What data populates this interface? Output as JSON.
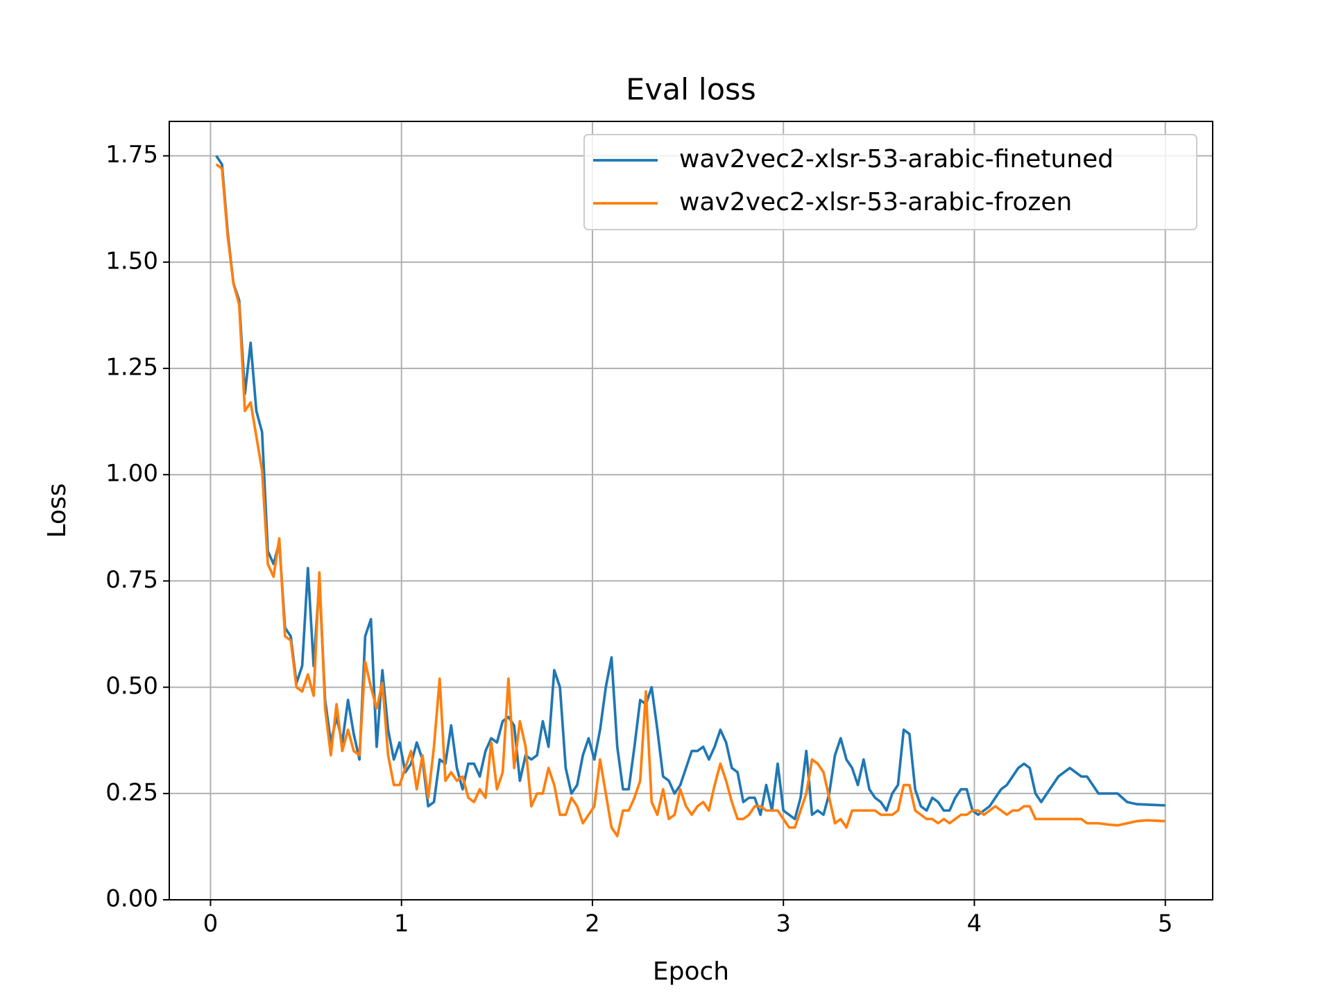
{
  "chart_data": {
    "type": "line",
    "title": "Eval loss",
    "xlabel": "Epoch",
    "ylabel": "Loss",
    "x": [
      0.03,
      0.06,
      0.09,
      0.12,
      0.15,
      0.18,
      0.21,
      0.24,
      0.27,
      0.3,
      0.33,
      0.36,
      0.39,
      0.42,
      0.45,
      0.48,
      0.51,
      0.54,
      0.57,
      0.6,
      0.63,
      0.66,
      0.69,
      0.72,
      0.75,
      0.78,
      0.81,
      0.84,
      0.87,
      0.9,
      0.93,
      0.96,
      0.99,
      1.02,
      1.05,
      1.08,
      1.11,
      1.14,
      1.17,
      1.2,
      1.23,
      1.26,
      1.29,
      1.32,
      1.35,
      1.38,
      1.41,
      1.44,
      1.47,
      1.5,
      1.53,
      1.56,
      1.59,
      1.62,
      1.65,
      1.68,
      1.71,
      1.74,
      1.77,
      1.8,
      1.83,
      1.86,
      1.89,
      1.92,
      1.95,
      1.98,
      2.01,
      2.04,
      2.07,
      2.1,
      2.13,
      2.16,
      2.19,
      2.22,
      2.25,
      2.28,
      2.31,
      2.34,
      2.37,
      2.4,
      2.43,
      2.46,
      2.49,
      2.52,
      2.55,
      2.58,
      2.61,
      2.64,
      2.67,
      2.7,
      2.73,
      2.76,
      2.79,
      2.82,
      2.85,
      2.88,
      2.91,
      2.94,
      2.97,
      3.0,
      3.03,
      3.06,
      3.09,
      3.12,
      3.15,
      3.18,
      3.21,
      3.24,
      3.27,
      3.3,
      3.33,
      3.36,
      3.39,
      3.42,
      3.45,
      3.48,
      3.51,
      3.54,
      3.57,
      3.6,
      3.63,
      3.66,
      3.69,
      3.72,
      3.75,
      3.78,
      3.81,
      3.84,
      3.87,
      3.9,
      3.93,
      3.96,
      3.99,
      4.02,
      4.05,
      4.08,
      4.11,
      4.14,
      4.17,
      4.2,
      4.23,
      4.26,
      4.29,
      4.32,
      4.35,
      4.38,
      4.41,
      4.44,
      4.47,
      4.5,
      4.53,
      4.56,
      4.59,
      4.62,
      4.65,
      4.7,
      4.75,
      4.8,
      4.85,
      4.9,
      5.0
    ],
    "series": [
      {
        "name": "wav2vec2-xlsr-53-arabic-finetuned",
        "color": "#1f77b4",
        "values": [
          1.75,
          1.73,
          1.57,
          1.45,
          1.41,
          1.19,
          1.31,
          1.15,
          1.1,
          0.82,
          0.79,
          0.84,
          0.64,
          0.62,
          0.51,
          0.55,
          0.78,
          0.55,
          0.75,
          0.47,
          0.37,
          0.43,
          0.37,
          0.47,
          0.39,
          0.33,
          0.62,
          0.66,
          0.36,
          0.54,
          0.4,
          0.33,
          0.37,
          0.3,
          0.32,
          0.37,
          0.33,
          0.22,
          0.23,
          0.33,
          0.32,
          0.41,
          0.31,
          0.26,
          0.32,
          0.32,
          0.29,
          0.35,
          0.38,
          0.37,
          0.42,
          0.43,
          0.41,
          0.28,
          0.34,
          0.33,
          0.34,
          0.42,
          0.36,
          0.54,
          0.5,
          0.31,
          0.25,
          0.27,
          0.34,
          0.38,
          0.33,
          0.4,
          0.5,
          0.57,
          0.36,
          0.26,
          0.26,
          0.36,
          0.47,
          0.46,
          0.5,
          0.4,
          0.29,
          0.28,
          0.25,
          0.27,
          0.31,
          0.35,
          0.35,
          0.36,
          0.33,
          0.36,
          0.4,
          0.37,
          0.31,
          0.3,
          0.23,
          0.24,
          0.24,
          0.2,
          0.27,
          0.21,
          0.32,
          0.21,
          0.2,
          0.19,
          0.24,
          0.35,
          0.2,
          0.21,
          0.2,
          0.25,
          0.34,
          0.38,
          0.33,
          0.31,
          0.27,
          0.33,
          0.26,
          0.24,
          0.23,
          0.21,
          0.25,
          0.27,
          0.4,
          0.39,
          0.26,
          0.22,
          0.21,
          0.24,
          0.23,
          0.21,
          0.21,
          0.24,
          0.26,
          0.26,
          0.21,
          0.2,
          0.21,
          0.22,
          0.24,
          0.26,
          0.27,
          0.29,
          0.31,
          0.32,
          0.31,
          0.25,
          0.23,
          0.25,
          0.27,
          0.29,
          0.3,
          0.31,
          0.3,
          0.29,
          0.29,
          0.27,
          0.25,
          0.25,
          0.25,
          0.23,
          0.225,
          0.224,
          0.222
        ]
      },
      {
        "name": "wav2vec2-xlsr-53-arabic-frozen",
        "color": "#ff7f0e",
        "values": [
          1.73,
          1.72,
          1.56,
          1.45,
          1.4,
          1.15,
          1.17,
          1.09,
          1.01,
          0.79,
          0.76,
          0.85,
          0.62,
          0.61,
          0.5,
          0.49,
          0.53,
          0.48,
          0.77,
          0.45,
          0.34,
          0.46,
          0.35,
          0.4,
          0.35,
          0.34,
          0.56,
          0.5,
          0.45,
          0.51,
          0.34,
          0.27,
          0.27,
          0.31,
          0.35,
          0.26,
          0.34,
          0.24,
          0.36,
          0.52,
          0.28,
          0.3,
          0.28,
          0.29,
          0.24,
          0.23,
          0.26,
          0.24,
          0.37,
          0.26,
          0.3,
          0.52,
          0.31,
          0.42,
          0.36,
          0.22,
          0.25,
          0.25,
          0.31,
          0.27,
          0.2,
          0.2,
          0.24,
          0.22,
          0.18,
          0.2,
          0.22,
          0.33,
          0.25,
          0.17,
          0.15,
          0.21,
          0.21,
          0.24,
          0.28,
          0.49,
          0.23,
          0.2,
          0.26,
          0.19,
          0.2,
          0.26,
          0.22,
          0.2,
          0.22,
          0.23,
          0.21,
          0.27,
          0.32,
          0.28,
          0.23,
          0.19,
          0.19,
          0.2,
          0.22,
          0.22,
          0.21,
          0.21,
          0.21,
          0.19,
          0.17,
          0.17,
          0.21,
          0.25,
          0.33,
          0.32,
          0.3,
          0.24,
          0.18,
          0.19,
          0.17,
          0.21,
          0.21,
          0.21,
          0.21,
          0.21,
          0.2,
          0.2,
          0.2,
          0.21,
          0.27,
          0.27,
          0.21,
          0.2,
          0.19,
          0.19,
          0.18,
          0.19,
          0.18,
          0.19,
          0.2,
          0.2,
          0.21,
          0.21,
          0.2,
          0.21,
          0.22,
          0.21,
          0.2,
          0.21,
          0.21,
          0.22,
          0.22,
          0.19,
          0.19,
          0.19,
          0.19,
          0.19,
          0.19,
          0.19,
          0.19,
          0.19,
          0.18,
          0.18,
          0.18,
          0.177,
          0.175,
          0.18,
          0.185,
          0.187,
          0.185
        ]
      }
    ],
    "xlim": [
      -0.216,
      5.248
    ],
    "ylim": [
      0,
      1.831
    ],
    "xticks": [
      0,
      1,
      2,
      3,
      4,
      5
    ],
    "yticks": [
      {
        "value": 0,
        "label": "0.00"
      },
      {
        "value": 0.25,
        "label": "0.25"
      },
      {
        "value": 0.5,
        "label": "0.50"
      },
      {
        "value": 0.75,
        "label": "0.75"
      },
      {
        "value": 1,
        "label": "1.00"
      },
      {
        "value": 1.25,
        "label": "1.25"
      },
      {
        "value": 1.5,
        "label": "1.50"
      },
      {
        "value": 1.75,
        "label": "1.75"
      }
    ],
    "grid": true,
    "legend": "upper right"
  }
}
